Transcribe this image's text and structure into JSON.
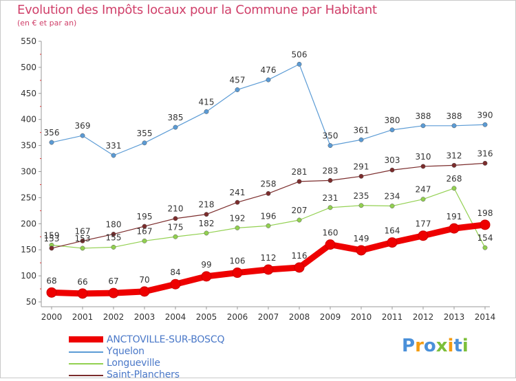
{
  "chart_data": {
    "type": "line",
    "title": "Evolution des Impôts locaux pour la Commune par Habitant",
    "subtitle": "(en € et par an)",
    "xlabel": "",
    "ylabel": "",
    "ylim": [
      50,
      550
    ],
    "yticks": [
      50,
      100,
      150,
      200,
      250,
      300,
      350,
      400,
      450,
      500,
      550
    ],
    "x": [
      "2000",
      "2001",
      "2002",
      "2003",
      "2004",
      "2005",
      "2006",
      "2007",
      "2008",
      "2009",
      "2010",
      "2011",
      "2012",
      "2013",
      "2014"
    ],
    "grid": false,
    "legend_position": "bottom-left",
    "series": [
      {
        "name": "ANCTOVILLE-SUR-BOSCQ",
        "color": "#ee0000",
        "values": [
          68,
          66,
          67,
          70,
          84,
          99,
          106,
          112,
          116,
          160,
          149,
          164,
          177,
          191,
          198
        ]
      },
      {
        "name": "Yquelon",
        "color": "#5b9bd5",
        "values": [
          356,
          369,
          331,
          355,
          385,
          415,
          457,
          476,
          506,
          350,
          361,
          380,
          388,
          388,
          390
        ]
      },
      {
        "name": "Longueville",
        "color": "#92d050",
        "values": [
          159,
          153,
          155,
          167,
          175,
          182,
          192,
          196,
          207,
          231,
          235,
          234,
          247,
          268,
          154
        ]
      },
      {
        "name": "Saint-Planchers",
        "color": "#7b2c2c",
        "values": [
          153,
          167,
          180,
          195,
          210,
          218,
          241,
          258,
          281,
          283,
          291,
          303,
          310,
          312,
          316
        ]
      }
    ]
  },
  "logo": {
    "text": "Proxiti",
    "parts": [
      {
        "ch": "P",
        "color": "#4a90d9"
      },
      {
        "ch": "r",
        "color": "#f39c12"
      },
      {
        "ch": "o",
        "color": "#4a90d9"
      },
      {
        "ch": "x",
        "color": "#7cbf3a"
      },
      {
        "ch": "i",
        "color": "#f39c12"
      },
      {
        "ch": "t",
        "color": "#4a90d9"
      },
      {
        "ch": "i",
        "color": "#7cbf3a"
      }
    ]
  }
}
